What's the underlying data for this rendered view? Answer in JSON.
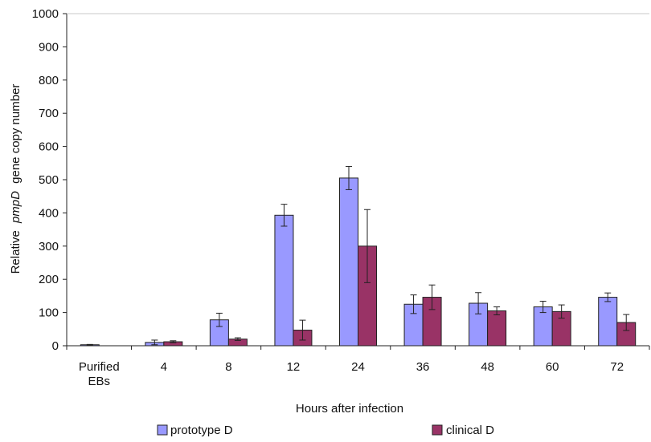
{
  "chart_data": {
    "type": "bar",
    "categories": [
      "Purified EBs",
      "4",
      "8",
      "12",
      "24",
      "36",
      "48",
      "60",
      "72"
    ],
    "series": [
      {
        "name": "prototype D",
        "color": "#9999ff",
        "values": [
          3,
          10,
          78,
          393,
          505,
          125,
          128,
          117,
          146
        ],
        "errors": [
          1,
          7,
          20,
          33,
          35,
          28,
          32,
          17,
          13
        ]
      },
      {
        "name": "clinical D",
        "color": "#993366",
        "values": [
          0,
          12,
          20,
          47,
          300,
          146,
          105,
          103,
          70
        ],
        "errors": [
          0,
          3,
          4,
          30,
          110,
          37,
          12,
          20,
          24
        ]
      }
    ],
    "ylim": [
      0,
      1000
    ],
    "yticks": [
      0,
      100,
      200,
      300,
      400,
      500,
      600,
      700,
      800,
      900,
      1000
    ],
    "xlabel": "Hours after infection",
    "ylabel": {
      "prefix": "Relative",
      "gene": "pmpD",
      "suffix": "gene copy number"
    },
    "legend_position": "bottom",
    "grid": false
  }
}
